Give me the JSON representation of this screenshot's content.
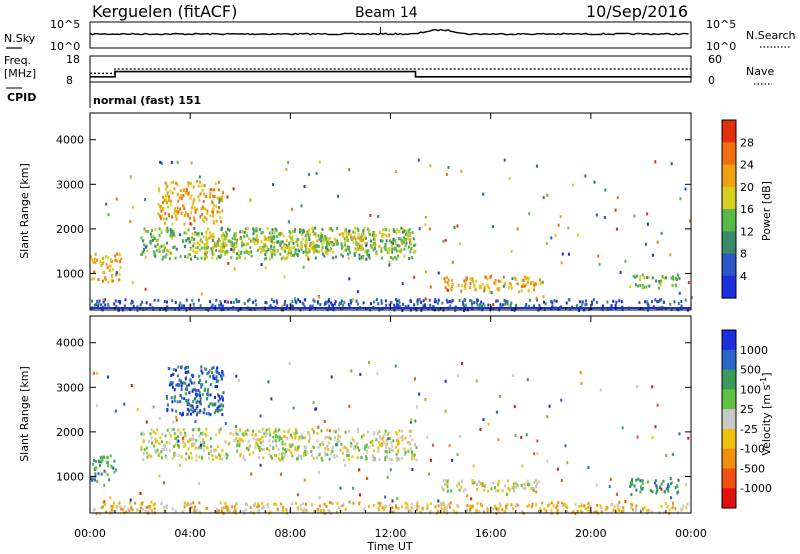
{
  "header": {
    "station": "Kerguelen (fitACF)",
    "beam": "Beam 14",
    "date": "10/Sep/2016"
  },
  "panels": {
    "nsky": {
      "left_label": "N.Sky",
      "left_ticks": [
        "10^5",
        "10^0"
      ],
      "right_ticks": [
        "10^5",
        "10^0"
      ],
      "right_label": "N.Search"
    },
    "freq": {
      "left_label_1": "Freq.",
      "left_label_2": "[MHz]",
      "left_ticks": [
        "18",
        "8"
      ],
      "right_ticks": [
        "60",
        "0"
      ],
      "right_label": "Nave"
    },
    "cpid": {
      "label": "CPID",
      "value": "normal (fast) 151"
    }
  },
  "colorbars": {
    "power": {
      "title": "Power [dB]",
      "ticks": [
        "4",
        "8",
        "12",
        "16",
        "20",
        "24",
        "28"
      ],
      "colors": [
        "#1a2ee0",
        "#2a56c8",
        "#3a8a6a",
        "#58b84a",
        "#d8d020",
        "#f0a010",
        "#f07010",
        "#e03010"
      ]
    },
    "velocity": {
      "title_main": "Velocity [m s",
      "title_sup": "-1",
      "title_end": "]",
      "ticks": [
        "1000",
        "500",
        "100",
        "25",
        "-25",
        "-100",
        "-500",
        "-1000"
      ],
      "colors": [
        "#1a2ee0",
        "#2a66c8",
        "#3a9a5a",
        "#60c040",
        "#c8c8c8",
        "#f0c010",
        "#f09010",
        "#f05010",
        "#e01010"
      ]
    }
  },
  "chart_data": [
    {
      "type": "line",
      "title": "N.Sky / N.Search",
      "x_range": [
        "00:00",
        "24:00"
      ],
      "note": "sky noise trace ~10^2.5, bump near 13:00-14:30"
    },
    {
      "type": "line",
      "series": [
        {
          "name": "Freq",
          "x_hours": [
            0,
            1.0,
            1.0,
            13.0,
            13.0,
            24
          ],
          "values": [
            10,
            10,
            12,
            12,
            10,
            10
          ]
        },
        {
          "name": "Nave",
          "x_hours": [
            0,
            1.0,
            1.0,
            24
          ],
          "values": [
            20,
            20,
            30,
            30
          ]
        }
      ],
      "ylim_left": [
        8,
        18
      ],
      "ylim_right": [
        0,
        60
      ]
    },
    {
      "type": "heatmap",
      "quantity": "Power",
      "unit": "dB",
      "xlabel": "",
      "ylabel": "Slant Range [km]",
      "x_ticks": [
        "00:00",
        "04:00",
        "08:00",
        "12:00",
        "16:00",
        "20:00",
        "00:00"
      ],
      "y_ticks": [
        1000,
        2000,
        3000,
        4000
      ],
      "ylim": [
        180,
        4600
      ],
      "regions": [
        {
          "t0": 0.0,
          "t1": 1.2,
          "r0": 800,
          "r1": 1500,
          "level": 5
        },
        {
          "t0": 2.7,
          "t1": 5.3,
          "r0": 2100,
          "r1": 3100,
          "level": 5
        },
        {
          "t0": 2.0,
          "t1": 13.0,
          "r0": 1350,
          "r1": 2050,
          "level": 3
        },
        {
          "t0": 4.0,
          "t1": 12.8,
          "r0": 1500,
          "r1": 1950,
          "level": 4
        },
        {
          "t0": 14.0,
          "t1": 18.0,
          "r0": 600,
          "r1": 950,
          "level": 5
        },
        {
          "t0": 21.5,
          "t1": 23.5,
          "r0": 700,
          "r1": 1000,
          "level": 3
        },
        {
          "t0": 0.0,
          "t1": 24.0,
          "r0": 200,
          "r1": 450,
          "level": 1
        }
      ]
    },
    {
      "type": "heatmap",
      "quantity": "Velocity",
      "unit": "m s-1",
      "xlabel": "Time UT",
      "ylabel": "Slant Range [km]",
      "x_ticks": [
        "00:00",
        "04:00",
        "08:00",
        "12:00",
        "16:00",
        "20:00",
        "00:00"
      ],
      "y_ticks": [
        1000,
        2000,
        3000,
        4000
      ],
      "ylim": [
        180,
        4600
      ],
      "regions": [
        {
          "t0": 0.0,
          "t1": 1.0,
          "r0": 900,
          "r1": 1500,
          "level": 6
        },
        {
          "t0": 3.0,
          "t1": 5.3,
          "r0": 2400,
          "r1": 3500,
          "level": 7
        },
        {
          "t0": 2.0,
          "t1": 13.0,
          "r0": 1400,
          "r1": 2100,
          "level": 4
        },
        {
          "t0": 14.0,
          "t1": 18.0,
          "r0": 700,
          "r1": 950,
          "level": 4
        },
        {
          "t0": 21.5,
          "t1": 23.5,
          "r0": 650,
          "r1": 1000,
          "level": 6
        },
        {
          "t0": 0.0,
          "t1": 24.0,
          "r0": 200,
          "r1": 450,
          "level": 3
        }
      ]
    }
  ]
}
